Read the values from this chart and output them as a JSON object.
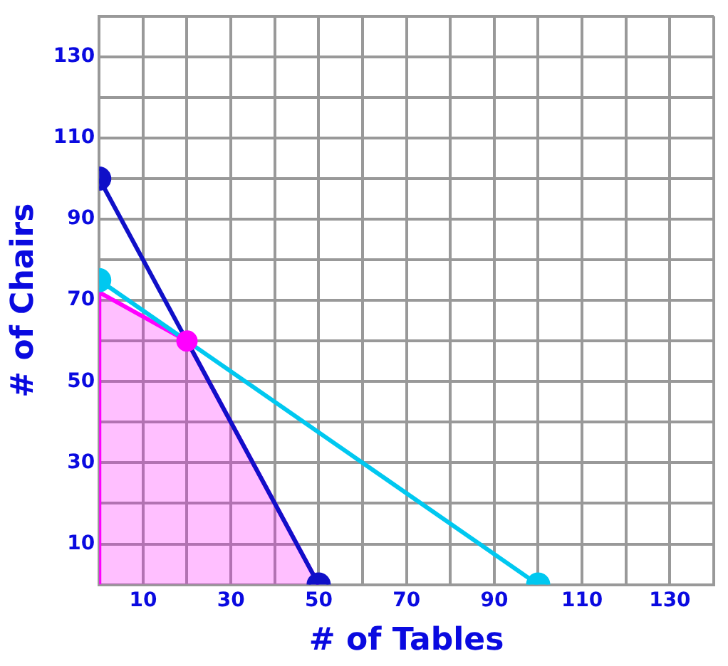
{
  "chart_data": {
    "type": "line",
    "xlabel": "# of Tables",
    "ylabel": "# of Chairs",
    "xlim": [
      0,
      140
    ],
    "ylim": [
      0,
      140
    ],
    "xticks": [
      {
        "value": 0,
        "label": null
      },
      10,
      {
        "value": 20,
        "label": null
      },
      30,
      {
        "value": 40,
        "label": null
      },
      50,
      {
        "value": 60,
        "label": null
      },
      70,
      {
        "value": 80,
        "label": null
      },
      90,
      {
        "value": 100,
        "label": null
      },
      110,
      {
        "value": 120,
        "label": null
      },
      130,
      {
        "value": 140,
        "label": null
      }
    ],
    "yticks": [
      {
        "value": 0,
        "label": null
      },
      10,
      {
        "value": 20,
        "label": null
      },
      30,
      {
        "value": 40,
        "label": null
      },
      50,
      {
        "value": 60,
        "label": null
      },
      70,
      {
        "value": 80,
        "label": null
      },
      90,
      {
        "value": 100,
        "label": null
      },
      110,
      {
        "value": 120,
        "label": null
      },
      130,
      {
        "value": 140,
        "label": null
      }
    ],
    "grid": true,
    "legend": false,
    "series": [
      {
        "type": "area",
        "color": "#ff00ff",
        "x": [
          0,
          0,
          20,
          50
        ],
        "values": [
          0,
          72,
          60,
          0
        ],
        "marker": "none"
      },
      {
        "color": "#1010c8",
        "x": [
          0,
          50
        ],
        "values": [
          100,
          0
        ],
        "marker": "circle"
      },
      {
        "color": "#00c8f0",
        "x": [
          0,
          100
        ],
        "values": [
          75,
          0
        ],
        "marker": "circle"
      },
      {
        "type": "scatter",
        "color": "#ff00ff",
        "x": [
          20
        ],
        "values": [
          60
        ],
        "marker": "circle"
      }
    ]
  }
}
